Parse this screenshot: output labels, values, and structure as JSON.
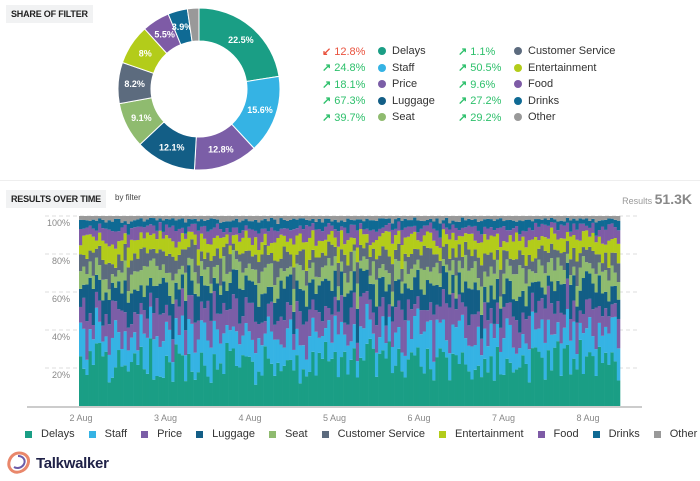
{
  "share_section": {
    "title": "SHARE OF FILTER"
  },
  "categories": [
    {
      "name": "Delays",
      "color": "#1a9e85",
      "share": 22.5,
      "change": "12.8%",
      "trend": "down"
    },
    {
      "name": "Staff",
      "color": "#35b3e4",
      "share": 15.6,
      "change": "24.8%",
      "trend": "up"
    },
    {
      "name": "Price",
      "color": "#7b5ea7",
      "share": 12.8,
      "change": "18.1%",
      "trend": "up"
    },
    {
      "name": "Luggage",
      "color": "#135e86",
      "share": 12.1,
      "change": "67.3%",
      "trend": "up"
    },
    {
      "name": "Seat",
      "color": "#8fbb6f",
      "share": 9.1,
      "change": "39.7%",
      "trend": "up"
    },
    {
      "name": "Customer Service",
      "color": "#5c6b7e",
      "share": 8.2,
      "change": "1.1%",
      "trend": "up"
    },
    {
      "name": "Entertainment",
      "color": "#b3cc1a",
      "share": 8,
      "change": "50.5%",
      "trend": "up"
    },
    {
      "name": "Food",
      "color": "#7e5ba6",
      "share": 5.5,
      "change": "9.6%",
      "trend": "up"
    },
    {
      "name": "Drinks",
      "color": "#0f6a94",
      "share": 3.9,
      "change": "27.2%",
      "trend": "up"
    },
    {
      "name": "Other",
      "color": "#999999",
      "share": 2.3,
      "change": "29.2%",
      "trend": "up"
    }
  ],
  "donut_labels": [
    "22.5%",
    "15.6%",
    "12.8%",
    "12.1%",
    "9.1%",
    "8.2%",
    "8%",
    "5.5%",
    "3.9%",
    ""
  ],
  "time_section": {
    "title": "RESULTS OVER TIME",
    "subtitle": "by filter",
    "results_label": "Results",
    "results_value": "51.3K"
  },
  "chart_data": {
    "type": "bar",
    "stacked": true,
    "normalized": true,
    "x_ticks": [
      "2 Aug",
      "3 Aug",
      "4 Aug",
      "5 Aug",
      "6 Aug",
      "7 Aug",
      "8 Aug"
    ],
    "y_ticks": [
      "20%",
      "40%",
      "60%",
      "80%",
      "100%"
    ],
    "ylim": [
      0,
      100
    ],
    "grid": true,
    "legend_position": "bottom",
    "series": [
      {
        "name": "Delays",
        "values": [
          24,
          22,
          21,
          23,
          22,
          23,
          24
        ]
      },
      {
        "name": "Staff",
        "values": [
          15,
          16,
          15,
          16,
          16,
          15,
          16
        ]
      },
      {
        "name": "Price",
        "values": [
          13,
          13,
          12,
          13,
          13,
          13,
          12
        ]
      },
      {
        "name": "Luggage",
        "values": [
          12,
          12,
          13,
          12,
          12,
          12,
          12
        ]
      },
      {
        "name": "Seat",
        "values": [
          9,
          9,
          9,
          9,
          9,
          9,
          9
        ]
      },
      {
        "name": "Customer Service",
        "values": [
          8,
          8,
          8,
          8,
          8,
          8,
          8
        ]
      },
      {
        "name": "Entertainment",
        "values": [
          8,
          8,
          8,
          8,
          8,
          8,
          8
        ]
      },
      {
        "name": "Food",
        "values": [
          5.5,
          5.5,
          5.5,
          5.5,
          5.5,
          5.5,
          5.5
        ]
      },
      {
        "name": "Drinks",
        "values": [
          4,
          4,
          4,
          4,
          4,
          4,
          4
        ]
      },
      {
        "name": "Other",
        "values": [
          2,
          2,
          2,
          2,
          2,
          2,
          2
        ]
      }
    ]
  },
  "brand": {
    "name": "Talkwalker"
  }
}
